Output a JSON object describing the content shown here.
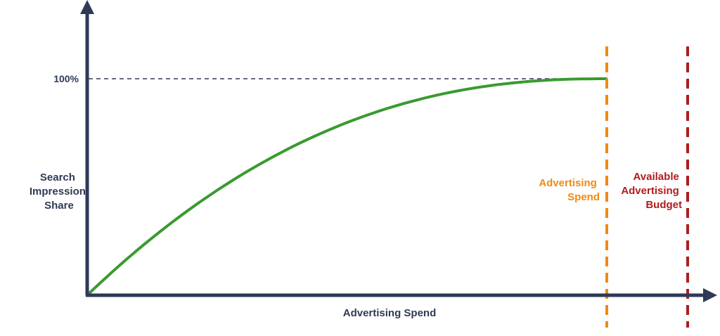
{
  "chart_data": {
    "type": "line",
    "title": "",
    "xlabel": "Advertising Spend",
    "ylabel": [
      "Search",
      "Impression",
      "Share"
    ],
    "y_tick": "100%",
    "curve": {
      "shape": "s-curve-saturating",
      "start_share": 0,
      "end_share": 1.0,
      "saturates_at": "Advertising Spend line"
    },
    "markers": [
      {
        "name": "advertising-spend",
        "label": [
          "Advertising",
          "Spend"
        ],
        "style": "dashed"
      },
      {
        "name": "available-budget",
        "label": [
          "Available",
          "Advertising",
          "Budget"
        ],
        "style": "dashed"
      }
    ],
    "grid": false,
    "legend": "none"
  },
  "colors": {
    "axis": "#2e3a56",
    "curve": "#3a9a2f",
    "spend_line": "#f08a10",
    "budget_line": "#b01c1c",
    "reference_line": "#2e3a56"
  }
}
